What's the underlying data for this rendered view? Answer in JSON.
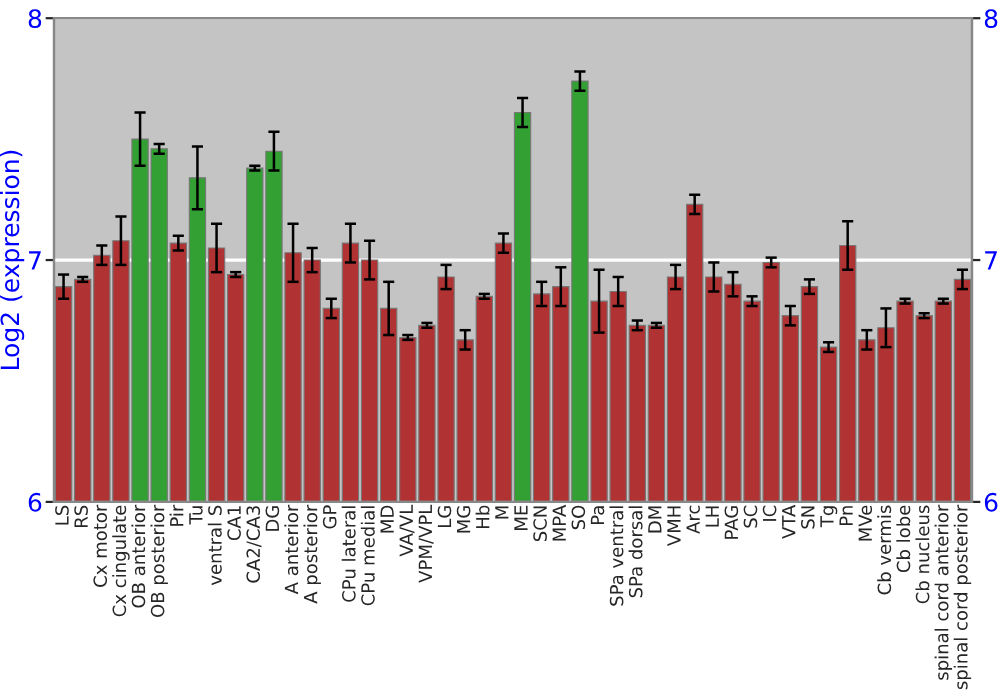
{
  "chart_data": {
    "type": "bar",
    "ylabel": "Log2 (expression)",
    "categories": [
      "LS",
      "RS",
      "Cx motor",
      "Cx cingulate",
      "OB anterior",
      "OB posterior",
      "Pir",
      "Tu",
      "ventral S",
      "CA1",
      "CA2/CA3",
      "DG",
      "A anterior",
      "A posterior",
      "GP",
      "CPu lateral",
      "CPu medial",
      "MD",
      "VA/VL",
      "VPM/VPL",
      "LG",
      "MG",
      "Hb",
      "M",
      "ME",
      "SCN",
      "MPA",
      "SO",
      "Pa",
      "SPa ventral",
      "SPa dorsal",
      "DM",
      "VMH",
      "Arc",
      "LH",
      "PAG",
      "SC",
      "IC",
      "VTA",
      "SN",
      "Tg",
      "Pn",
      "MVe",
      "Cb vermis",
      "Cb lobe",
      "Cb nucleus",
      "spinal cord anterior",
      "spinal cord posterior"
    ],
    "values": [
      6.89,
      6.92,
      7.02,
      7.08,
      7.5,
      7.46,
      7.07,
      7.34,
      7.05,
      6.94,
      7.38,
      7.45,
      7.03,
      7.0,
      6.8,
      7.07,
      7.0,
      6.8,
      6.68,
      6.73,
      6.93,
      6.67,
      6.85,
      7.07,
      7.61,
      6.86,
      6.89,
      7.74,
      6.83,
      6.87,
      6.73,
      6.73,
      6.93,
      7.23,
      6.93,
      6.9,
      6.83,
      6.99,
      6.77,
      6.89,
      6.64,
      7.06,
      6.67,
      6.72,
      6.83,
      6.77,
      6.83,
      6.92
    ],
    "errors": [
      0.05,
      0.01,
      0.04,
      0.1,
      0.11,
      0.02,
      0.03,
      0.13,
      0.1,
      0.01,
      0.01,
      0.08,
      0.12,
      0.05,
      0.04,
      0.08,
      0.08,
      0.11,
      0.01,
      0.01,
      0.05,
      0.04,
      0.01,
      0.04,
      0.06,
      0.05,
      0.08,
      0.04,
      0.13,
      0.06,
      0.02,
      0.01,
      0.05,
      0.04,
      0.06,
      0.05,
      0.02,
      0.02,
      0.04,
      0.03,
      0.02,
      0.1,
      0.04,
      0.08,
      0.01,
      0.01,
      0.01,
      0.04
    ],
    "colors": [
      "#b03232",
      "#b03232",
      "#b03232",
      "#b03232",
      "#33a033",
      "#33a033",
      "#b03232",
      "#33a033",
      "#b03232",
      "#b03232",
      "#33a033",
      "#33a033",
      "#b03232",
      "#b03232",
      "#b03232",
      "#b03232",
      "#b03232",
      "#b03232",
      "#b03232",
      "#b03232",
      "#b03232",
      "#b03232",
      "#b03232",
      "#b03232",
      "#33a033",
      "#b03232",
      "#b03232",
      "#33a033",
      "#b03232",
      "#b03232",
      "#b03232",
      "#b03232",
      "#b03232",
      "#b03232",
      "#b03232",
      "#b03232",
      "#b03232",
      "#b03232",
      "#b03232",
      "#b03232",
      "#b03232",
      "#b03232",
      "#b03232",
      "#b03232",
      "#b03232",
      "#b03232",
      "#b03232",
      "#b03232"
    ],
    "ylim": [
      6,
      8
    ],
    "yticks": [
      6,
      7,
      8
    ],
    "y2lim": [
      6,
      8
    ],
    "y2ticks": [
      6,
      7,
      8
    ],
    "grid": "y"
  }
}
